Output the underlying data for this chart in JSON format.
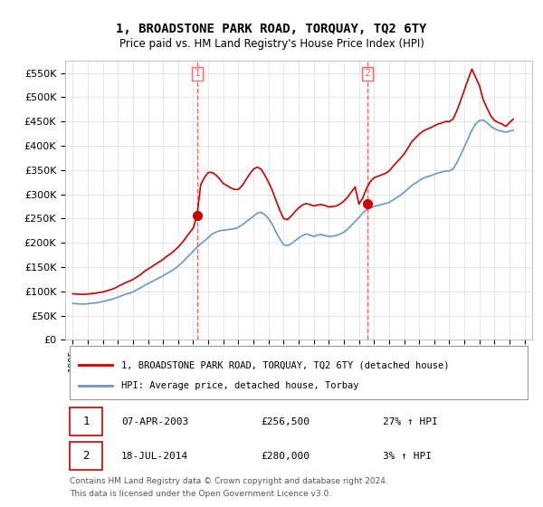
{
  "title": "1, BROADSTONE PARK ROAD, TORQUAY, TQ2 6TY",
  "subtitle": "Price paid vs. HM Land Registry's House Price Index (HPI)",
  "legend_line1": "1, BROADSTONE PARK ROAD, TORQUAY, TQ2 6TY (detached house)",
  "legend_line2": "HPI: Average price, detached house, Torbay",
  "footnote": "Contains HM Land Registry data © Crown copyright and database right 2024.\nThis data is licensed under the Open Government Licence v3.0.",
  "sale1_label": "1",
  "sale1_date": "07-APR-2003",
  "sale1_price": "£256,500",
  "sale1_hpi": "27% ↑ HPI",
  "sale2_label": "2",
  "sale2_date": "18-JUL-2014",
  "sale2_price": "£280,000",
  "sale2_hpi": "3% ↑ HPI",
  "sale1_x": 2003.27,
  "sale1_y": 256500,
  "sale2_x": 2014.55,
  "sale2_y": 280000,
  "ylim": [
    0,
    575000
  ],
  "xlim": [
    1994.5,
    2025.5
  ],
  "yticks": [
    0,
    50000,
    100000,
    150000,
    200000,
    250000,
    300000,
    350000,
    400000,
    450000,
    500000,
    550000
  ],
  "ytick_labels": [
    "£0",
    "£50K",
    "£100K",
    "£150K",
    "£200K",
    "£250K",
    "£300K",
    "£350K",
    "£400K",
    "£450K",
    "£500K",
    "£550K"
  ],
  "xticks": [
    1995,
    1996,
    1997,
    1998,
    1999,
    2000,
    2001,
    2002,
    2003,
    2004,
    2005,
    2006,
    2007,
    2008,
    2009,
    2010,
    2011,
    2012,
    2013,
    2014,
    2015,
    2016,
    2017,
    2018,
    2019,
    2020,
    2021,
    2022,
    2023,
    2024,
    2025
  ],
  "red_line_color": "#cc0000",
  "blue_line_color": "#6699cc",
  "vline_color": "#ff6666",
  "grid_color": "#dddddd",
  "bg_color": "#ffffff",
  "sale_marker_color": "#cc0000",
  "table_border_color": "#cc0000",
  "hpi_data_x": [
    1995.0,
    1995.25,
    1995.5,
    1995.75,
    1996.0,
    1996.25,
    1996.5,
    1996.75,
    1997.0,
    1997.25,
    1997.5,
    1997.75,
    1998.0,
    1998.25,
    1998.5,
    1998.75,
    1999.0,
    1999.25,
    1999.5,
    1999.75,
    2000.0,
    2000.25,
    2000.5,
    2000.75,
    2001.0,
    2001.25,
    2001.5,
    2001.75,
    2002.0,
    2002.25,
    2002.5,
    2002.75,
    2003.0,
    2003.25,
    2003.5,
    2003.75,
    2004.0,
    2004.25,
    2004.5,
    2004.75,
    2005.0,
    2005.25,
    2005.5,
    2005.75,
    2006.0,
    2006.25,
    2006.5,
    2006.75,
    2007.0,
    2007.25,
    2007.5,
    2007.75,
    2008.0,
    2008.25,
    2008.5,
    2008.75,
    2009.0,
    2009.25,
    2009.5,
    2009.75,
    2010.0,
    2010.25,
    2010.5,
    2010.75,
    2011.0,
    2011.25,
    2011.5,
    2011.75,
    2012.0,
    2012.25,
    2012.5,
    2012.75,
    2013.0,
    2013.25,
    2013.5,
    2013.75,
    2014.0,
    2014.25,
    2014.5,
    2014.75,
    2015.0,
    2015.25,
    2015.5,
    2015.75,
    2016.0,
    2016.25,
    2016.5,
    2016.75,
    2017.0,
    2017.25,
    2017.5,
    2017.75,
    2018.0,
    2018.25,
    2018.5,
    2018.75,
    2019.0,
    2019.25,
    2019.5,
    2019.75,
    2020.0,
    2020.25,
    2020.5,
    2020.75,
    2021.0,
    2021.25,
    2021.5,
    2021.75,
    2022.0,
    2022.25,
    2022.5,
    2022.75,
    2023.0,
    2023.25,
    2023.5,
    2023.75,
    2024.0,
    2024.25
  ],
  "hpi_data_y": [
    75000,
    74500,
    74000,
    73800,
    74500,
    75500,
    76000,
    77500,
    79000,
    81000,
    83000,
    85000,
    88000,
    91000,
    94000,
    96000,
    99000,
    103000,
    107000,
    112000,
    116000,
    120000,
    124000,
    128000,
    132000,
    137000,
    141000,
    146000,
    152000,
    159000,
    167000,
    175000,
    183000,
    191000,
    198000,
    204000,
    211000,
    218000,
    222000,
    225000,
    226000,
    227000,
    228000,
    229000,
    232000,
    237000,
    243000,
    249000,
    255000,
    261000,
    263000,
    258000,
    250000,
    238000,
    222000,
    208000,
    196000,
    194000,
    198000,
    204000,
    210000,
    215000,
    218000,
    216000,
    213000,
    216000,
    217000,
    215000,
    213000,
    214000,
    215000,
    218000,
    222000,
    228000,
    236000,
    244000,
    252000,
    261000,
    268000,
    272000,
    275000,
    277000,
    279000,
    281000,
    283000,
    288000,
    293000,
    298000,
    304000,
    311000,
    318000,
    323000,
    328000,
    333000,
    336000,
    338000,
    341000,
    344000,
    346000,
    348000,
    348000,
    352000,
    365000,
    381000,
    398000,
    415000,
    432000,
    445000,
    452000,
    453000,
    448000,
    440000,
    435000,
    432000,
    430000,
    428000,
    430000,
    432000
  ],
  "red_data_x": [
    1995.0,
    1995.25,
    1995.5,
    1995.75,
    1996.0,
    1996.25,
    1996.5,
    1996.75,
    1997.0,
    1997.25,
    1997.5,
    1997.75,
    1998.0,
    1998.25,
    1998.5,
    1998.75,
    1999.0,
    1999.25,
    1999.5,
    1999.75,
    2000.0,
    2000.25,
    2000.5,
    2000.75,
    2001.0,
    2001.25,
    2001.5,
    2001.75,
    2002.0,
    2002.25,
    2002.5,
    2002.75,
    2003.0,
    2003.25,
    2003.5,
    2003.75,
    2004.0,
    2004.25,
    2004.5,
    2004.75,
    2005.0,
    2005.25,
    2005.5,
    2005.75,
    2006.0,
    2006.25,
    2006.5,
    2006.75,
    2007.0,
    2007.25,
    2007.5,
    2007.75,
    2008.0,
    2008.25,
    2008.5,
    2008.75,
    2009.0,
    2009.25,
    2009.5,
    2009.75,
    2010.0,
    2010.25,
    2010.5,
    2010.75,
    2011.0,
    2011.25,
    2011.5,
    2011.75,
    2012.0,
    2012.25,
    2012.5,
    2012.75,
    2013.0,
    2013.25,
    2013.5,
    2013.75,
    2014.0,
    2014.25,
    2014.5,
    2014.75,
    2015.0,
    2015.25,
    2015.5,
    2015.75,
    2016.0,
    2016.25,
    2016.5,
    2016.75,
    2017.0,
    2017.25,
    2017.5,
    2017.75,
    2018.0,
    2018.25,
    2018.5,
    2018.75,
    2019.0,
    2019.25,
    2019.5,
    2019.75,
    2020.0,
    2020.25,
    2020.5,
    2020.75,
    2021.0,
    2021.25,
    2021.5,
    2021.75,
    2022.0,
    2022.25,
    2022.5,
    2022.75,
    2023.0,
    2023.25,
    2023.5,
    2023.75,
    2024.0,
    2024.25
  ],
  "red_data_y": [
    95000,
    94500,
    94000,
    93800,
    94500,
    95500,
    96000,
    97500,
    99000,
    101000,
    103500,
    106000,
    110000,
    114000,
    118000,
    121000,
    124500,
    129500,
    134500,
    141000,
    146000,
    151000,
    156000,
    161000,
    166000,
    172500,
    177500,
    184000,
    191000,
    200000,
    210000,
    220500,
    230500,
    256500,
    320000,
    335000,
    345000,
    345000,
    340000,
    332000,
    322000,
    318000,
    313000,
    310000,
    310000,
    318000,
    330000,
    342000,
    352000,
    356000,
    352000,
    340000,
    325000,
    308000,
    287000,
    267000,
    250000,
    248000,
    255000,
    264000,
    272000,
    278000,
    281000,
    279000,
    276000,
    278000,
    279000,
    277000,
    274000,
    275000,
    276000,
    280000,
    286000,
    294000,
    305000,
    315000,
    280000,
    292000,
    312000,
    326000,
    334000,
    337000,
    340000,
    343000,
    348000,
    357000,
    366000,
    374000,
    383000,
    395000,
    408000,
    416000,
    424000,
    430000,
    434000,
    437000,
    441000,
    445000,
    447000,
    450000,
    450000,
    455000,
    472000,
    493000,
    515000,
    537000,
    558000,
    541000,
    524000,
    495000,
    478000,
    462000,
    452000,
    448000,
    445000,
    440000,
    448000,
    455000
  ]
}
